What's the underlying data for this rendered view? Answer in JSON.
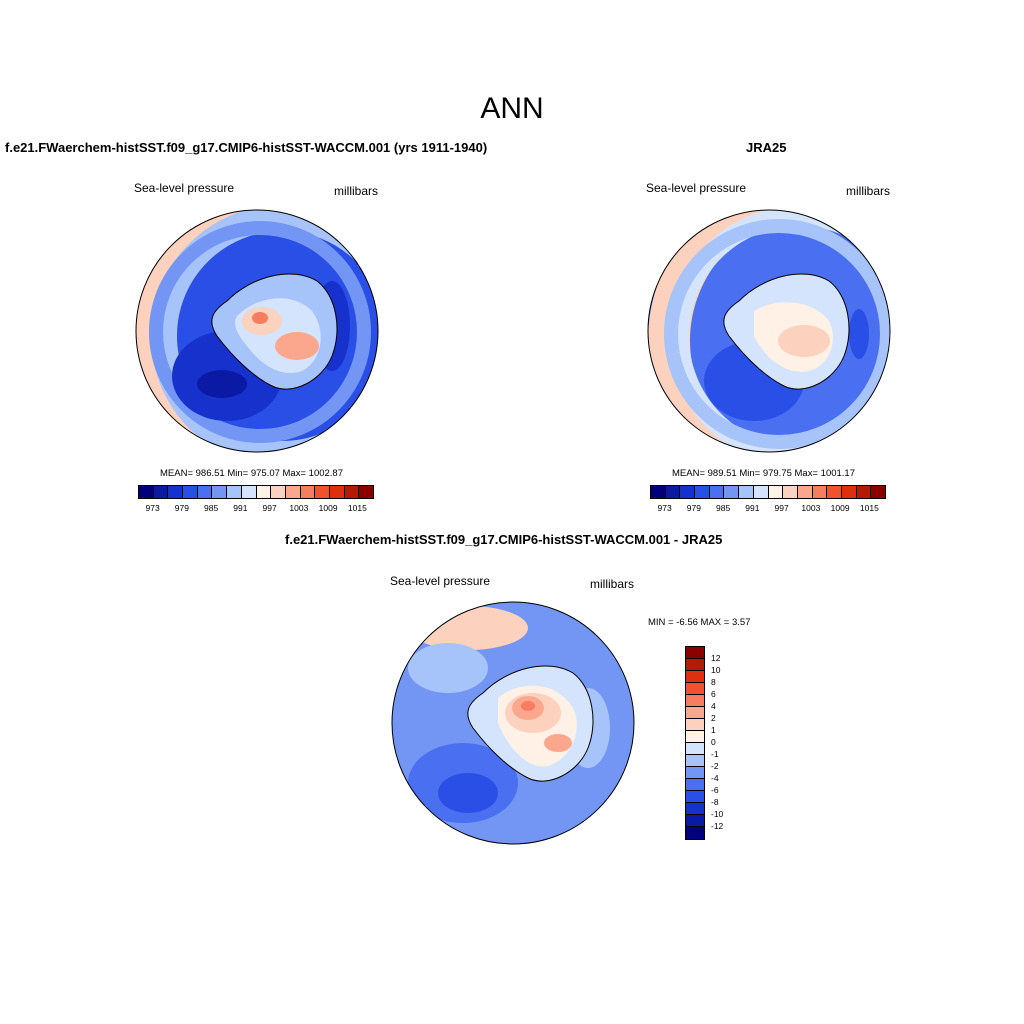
{
  "title": "ANN",
  "panels": [
    {
      "title": "f.e21.FWaerchem-histSST.f09_g17.CMIP6-histSST-WACCM.001 (yrs 1911-1940)",
      "left_label": "Sea-level pressure",
      "right_label": "millibars",
      "stats": "MEAN= 986.51  Min= 975.07  Max= 1002.87"
    },
    {
      "title": "JRA25",
      "left_label": "Sea-level pressure",
      "right_label": "millibars",
      "stats": "MEAN= 989.51  Min= 979.75  Max= 1001.17"
    },
    {
      "title": "f.e21.FWaerchem-histSST.f09_g17.CMIP6-histSST-WACCM.001 - JRA25",
      "left_label": "Sea-level pressure",
      "right_label": "millibars",
      "stats": "MIN =  -6.56 MAX =   3.57"
    }
  ],
  "colorbar_abs": {
    "ticks": [
      "973",
      "979",
      "985",
      "991",
      "997",
      "1003",
      "1009",
      "1015"
    ],
    "colors": [
      "#00007f",
      "#0a1aa5",
      "#1732cc",
      "#2a4fe6",
      "#4a6ff0",
      "#7396f5",
      "#a6c3fa",
      "#d4e4fc",
      "#fff1e6",
      "#fcd1bd",
      "#fba78e",
      "#f77d60",
      "#f2502e",
      "#de3010",
      "#b51a05",
      "#8b0000"
    ]
  },
  "colorbar_diff": {
    "ticks": [
      "12",
      "10",
      "8",
      "6",
      "4",
      "2",
      "1",
      "0",
      "-1",
      "-2",
      "-4",
      "-6",
      "-8",
      "-10",
      "-12"
    ],
    "colors": [
      "#8b0000",
      "#b51a05",
      "#de3010",
      "#f2502e",
      "#f77d60",
      "#fba78e",
      "#fcd1bd",
      "#fff1e6",
      "#d4e4fc",
      "#a6c3fa",
      "#7396f5",
      "#4a6ff0",
      "#2a4fe6",
      "#1732cc",
      "#0a1aa5",
      "#00007f"
    ]
  }
}
